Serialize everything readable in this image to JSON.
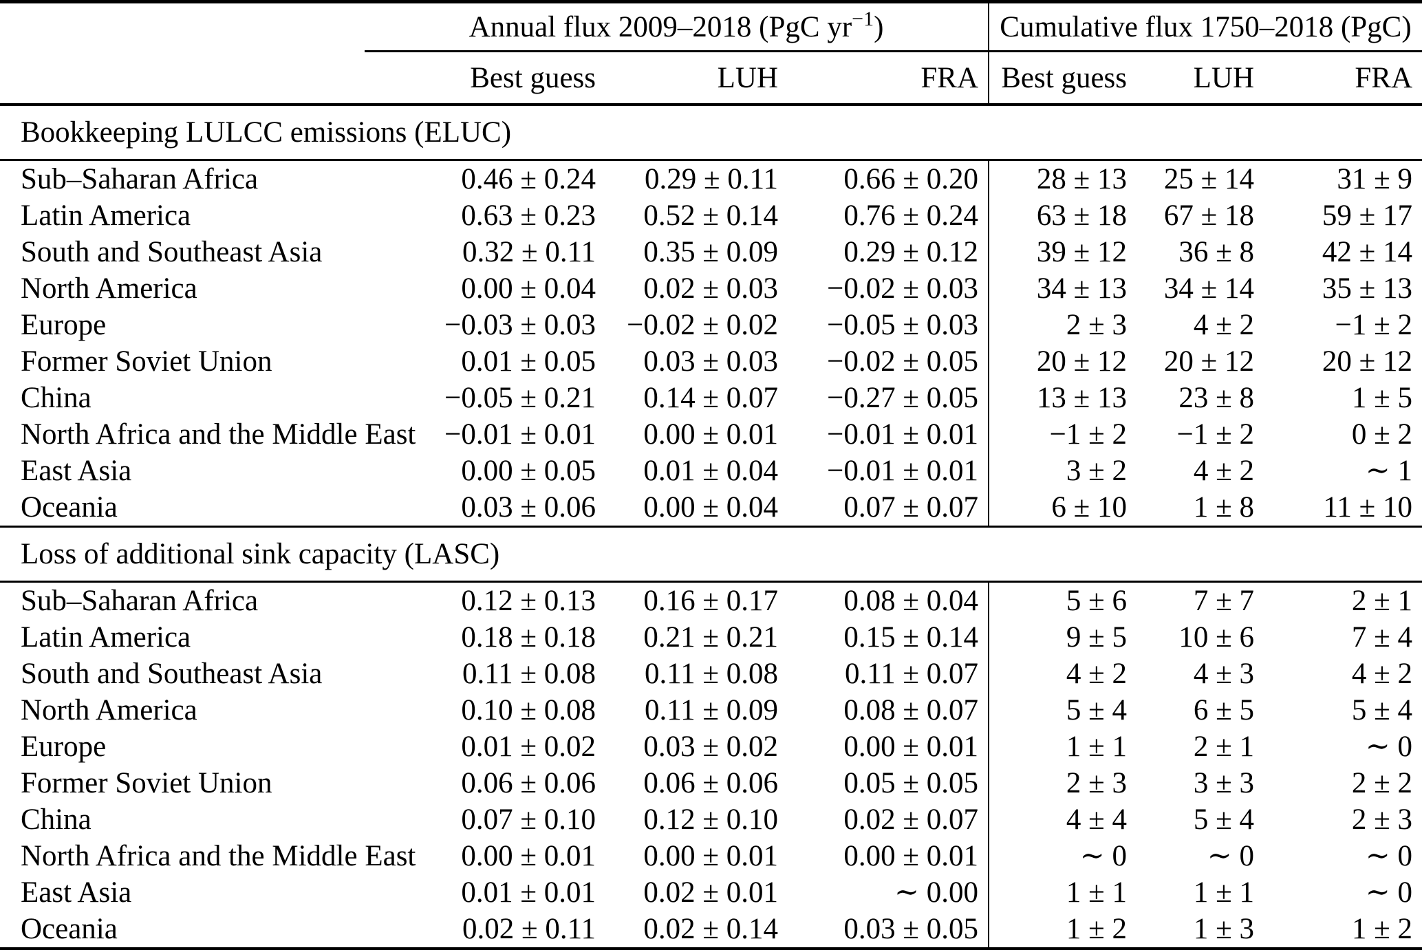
{
  "table": {
    "col_groups": {
      "annual": {
        "label_pre": "Annual flux 2009–2018 (PgC yr",
        "label_sup": "−1",
        "label_post": ")"
      },
      "cumulative": {
        "label": "Cumulative flux 1750–2018 (PgC)"
      }
    },
    "sub_headers": [
      "Best guess",
      "LUH",
      "FRA",
      "Best guess",
      "LUH",
      "FRA"
    ],
    "sections": [
      {
        "title": "Bookkeeping LULCC emissions (ELUC)",
        "rows": [
          {
            "region": "Sub–Saharan Africa",
            "values": [
              "0.46 ± 0.24",
              "0.29 ± 0.11",
              "0.66 ± 0.20",
              "28 ± 13",
              "25 ± 14",
              "31 ± 9"
            ]
          },
          {
            "region": "Latin America",
            "values": [
              "0.63 ± 0.23",
              "0.52 ± 0.14",
              "0.76 ± 0.24",
              "63 ± 18",
              "67 ± 18",
              "59 ± 17"
            ]
          },
          {
            "region": "South and Southeast Asia",
            "values": [
              "0.32 ± 0.11",
              "0.35 ± 0.09",
              "0.29 ± 0.12",
              "39 ± 12",
              "36 ± 8",
              "42 ± 14"
            ]
          },
          {
            "region": "North America",
            "values": [
              "0.00 ± 0.04",
              "0.02 ± 0.03",
              "−0.02 ± 0.03",
              "34 ± 13",
              "34 ± 14",
              "35 ± 13"
            ]
          },
          {
            "region": "Europe",
            "values": [
              "−0.03 ± 0.03",
              "−0.02 ± 0.02",
              "−0.05 ± 0.03",
              "2 ± 3",
              "4 ± 2",
              "−1 ± 2"
            ]
          },
          {
            "region": "Former Soviet Union",
            "values": [
              "0.01 ± 0.05",
              "0.03 ± 0.03",
              "−0.02 ± 0.05",
              "20 ± 12",
              "20 ± 12",
              "20 ± 12"
            ]
          },
          {
            "region": "China",
            "values": [
              "−0.05 ± 0.21",
              "0.14 ± 0.07",
              "−0.27 ± 0.05",
              "13 ± 13",
              "23 ± 8",
              "1 ± 5"
            ]
          },
          {
            "region": "North Africa and the Middle East",
            "values": [
              "−0.01 ± 0.01",
              "0.00 ± 0.01",
              "−0.01 ± 0.01",
              "−1 ± 2",
              "−1 ± 2",
              "0 ± 2"
            ]
          },
          {
            "region": "East Asia",
            "values": [
              "0.00 ± 0.05",
              "0.01 ± 0.04",
              "−0.01 ± 0.01",
              "3 ± 2",
              "4 ± 2",
              "∼ 1"
            ]
          },
          {
            "region": "Oceania",
            "values": [
              "0.03 ± 0.06",
              "0.00 ± 0.04",
              "0.07 ± 0.07",
              "6 ± 10",
              "1 ± 8",
              "11 ± 10"
            ]
          }
        ]
      },
      {
        "title": "Loss of additional sink capacity (LASC)",
        "rows": [
          {
            "region": "Sub–Saharan Africa",
            "values": [
              "0.12 ± 0.13",
              "0.16 ± 0.17",
              "0.08 ± 0.04",
              "5 ± 6",
              "7 ± 7",
              "2 ± 1"
            ]
          },
          {
            "region": "Latin America",
            "values": [
              "0.18 ± 0.18",
              "0.21 ± 0.21",
              "0.15 ± 0.14",
              "9 ± 5",
              "10 ± 6",
              "7 ± 4"
            ]
          },
          {
            "region": "South and Southeast Asia",
            "values": [
              "0.11 ± 0.08",
              "0.11 ± 0.08",
              "0.11 ± 0.07",
              "4 ± 2",
              "4 ± 3",
              "4 ± 2"
            ]
          },
          {
            "region": "North America",
            "values": [
              "0.10 ± 0.08",
              "0.11 ± 0.09",
              "0.08 ± 0.07",
              "5 ± 4",
              "6 ± 5",
              "5 ± 4"
            ]
          },
          {
            "region": "Europe",
            "values": [
              "0.01 ± 0.02",
              "0.03 ± 0.02",
              "0.00 ± 0.01",
              "1 ± 1",
              "2 ± 1",
              "∼ 0"
            ]
          },
          {
            "region": "Former Soviet Union",
            "values": [
              "0.06 ± 0.06",
              "0.06 ± 0.06",
              "0.05 ± 0.05",
              "2 ± 3",
              "3 ± 3",
              "2 ± 2"
            ]
          },
          {
            "region": "China",
            "values": [
              "0.07 ± 0.10",
              "0.12 ± 0.10",
              "0.02 ± 0.07",
              "4 ± 4",
              "5 ± 4",
              "2 ± 3"
            ]
          },
          {
            "region": "North Africa and the Middle East",
            "values": [
              "0.00 ± 0.01",
              "0.00 ± 0.01",
              "0.00 ± 0.01",
              "∼ 0",
              "∼ 0",
              "∼ 0"
            ]
          },
          {
            "region": "East Asia",
            "values": [
              "0.01 ± 0.01",
              "0.02 ± 0.01",
              "∼ 0.00",
              "1 ± 1",
              "1 ± 1",
              "∼ 0"
            ]
          },
          {
            "region": "Oceania",
            "values": [
              "0.02 ± 0.11",
              "0.02 ± 0.14",
              "0.03 ± 0.05",
              "1 ± 2",
              "1 ± 3",
              "1 ± 2"
            ]
          }
        ]
      }
    ]
  }
}
